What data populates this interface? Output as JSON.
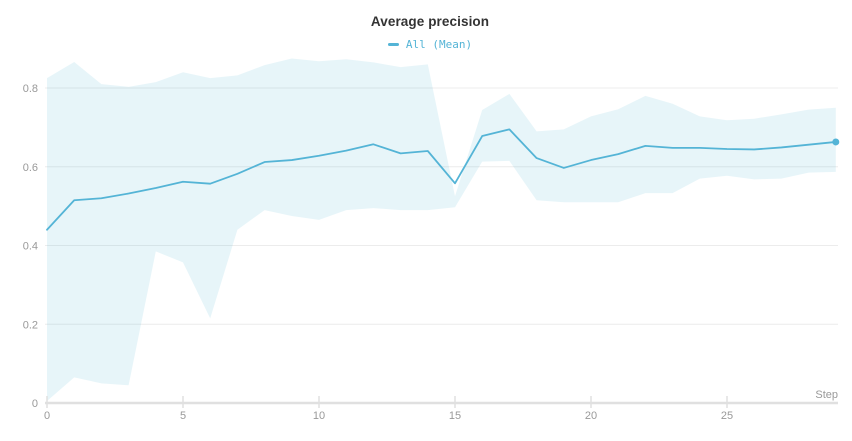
{
  "chart": {
    "title": "Average precision",
    "legend": [
      {
        "label": "All (Mean)",
        "color": "#54b4d6"
      }
    ]
  },
  "chart_data": {
    "type": "line",
    "title": "Average precision",
    "xlabel": "Step",
    "ylabel": "",
    "x": [
      0,
      1,
      2,
      3,
      4,
      5,
      6,
      7,
      8,
      9,
      10,
      11,
      12,
      13,
      14,
      15,
      16,
      17,
      18,
      19,
      20,
      21,
      22,
      23,
      24,
      25,
      26,
      27,
      28,
      29
    ],
    "series": [
      {
        "name": "All (Mean)",
        "values": [
          0.44,
          0.515,
          0.52,
          0.532,
          0.546,
          0.562,
          0.557,
          0.582,
          0.612,
          0.617,
          0.628,
          0.641,
          0.657,
          0.634,
          0.64,
          0.558,
          0.678,
          0.695,
          0.622,
          0.597,
          0.617,
          0.632,
          0.653,
          0.648,
          0.648,
          0.645,
          0.644,
          0.649,
          0.656,
          0.663
        ],
        "band_upper": [
          0.825,
          0.866,
          0.81,
          0.803,
          0.815,
          0.84,
          0.825,
          0.832,
          0.858,
          0.875,
          0.868,
          0.873,
          0.865,
          0.853,
          0.86,
          0.525,
          0.744,
          0.785,
          0.69,
          0.695,
          0.728,
          0.746,
          0.78,
          0.76,
          0.728,
          0.718,
          0.722,
          0.733,
          0.745,
          0.75
        ],
        "band_lower": [
          0.005,
          0.065,
          0.05,
          0.045,
          0.385,
          0.357,
          0.215,
          0.44,
          0.49,
          0.475,
          0.465,
          0.49,
          0.495,
          0.49,
          0.49,
          0.497,
          0.613,
          0.615,
          0.515,
          0.51,
          0.51,
          0.51,
          0.533,
          0.533,
          0.57,
          0.577,
          0.568,
          0.57,
          0.585,
          0.587
        ]
      }
    ],
    "x_ticks": [
      {
        "v": 0,
        "label": "0"
      },
      {
        "v": 5,
        "label": "5"
      },
      {
        "v": 10,
        "label": "10"
      },
      {
        "v": 15,
        "label": "15"
      },
      {
        "v": 20,
        "label": "20"
      },
      {
        "v": 25,
        "label": "25"
      }
    ],
    "y_ticks": [
      {
        "v": 0,
        "label": "0"
      },
      {
        "v": 0.2,
        "label": "0.2"
      },
      {
        "v": 0.4,
        "label": "0.4"
      },
      {
        "v": 0.6,
        "label": "0.6"
      },
      {
        "v": 0.8,
        "label": "0.8"
      }
    ],
    "xlim": [
      0,
      29
    ],
    "ylim": [
      0,
      0.9
    ],
    "grid": "horizontal",
    "legend_position": "top-center",
    "last_point_marker": true,
    "colors": {
      "line": "#54b4d6",
      "band": "#56b6d8",
      "band_opacity": "0.14",
      "grid_line": "#ececec",
      "axis_line": "#e0e0e0",
      "tick_label": "#999999",
      "title": "#333333"
    }
  }
}
